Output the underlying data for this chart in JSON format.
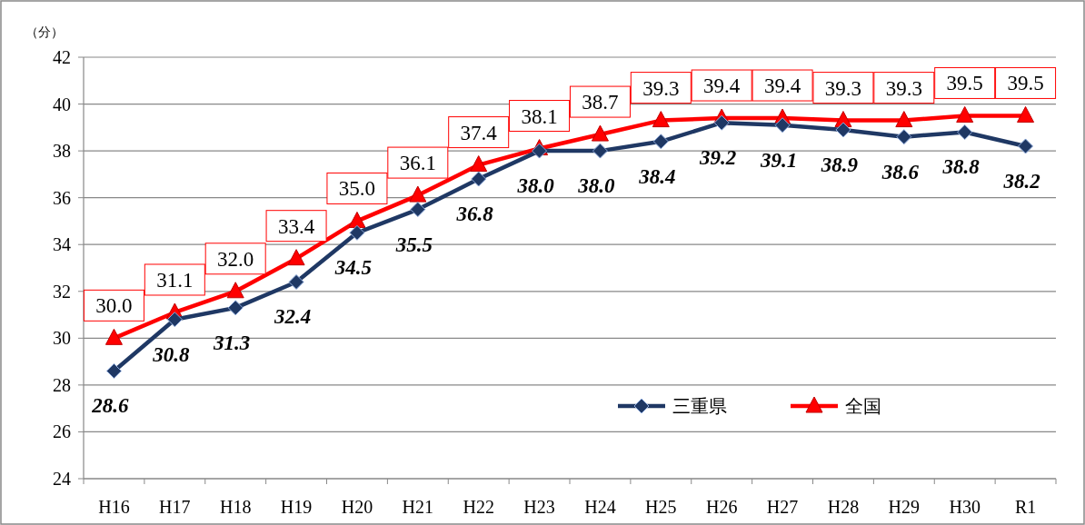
{
  "chart_data": {
    "type": "line",
    "ylabel": "（分）",
    "categories": [
      "H16",
      "H17",
      "H18",
      "H19",
      "H20",
      "H21",
      "H22",
      "H23",
      "H24",
      "H25",
      "H26",
      "H27",
      "H28",
      "H29",
      "H30",
      "R1"
    ],
    "series": [
      {
        "name": "三重県",
        "color": "#1f3864",
        "marker": "diamond",
        "values": [
          28.6,
          30.8,
          31.3,
          32.4,
          34.5,
          35.5,
          36.8,
          38.0,
          38.0,
          38.4,
          39.2,
          39.1,
          38.9,
          38.6,
          38.8,
          38.2
        ],
        "value_labels": [
          "28.6",
          "30.8",
          "31.3",
          "32.4",
          "34.5",
          "35.5",
          "36.8",
          "38.0",
          "38.0",
          "38.4",
          "39.2",
          "39.1",
          "38.9",
          "38.6",
          "38.8",
          "38.2"
        ]
      },
      {
        "name": "全国",
        "color": "#ff0000",
        "marker": "triangle",
        "values": [
          30.0,
          31.1,
          32.0,
          33.4,
          35.0,
          36.1,
          37.4,
          38.1,
          38.7,
          39.3,
          39.4,
          39.4,
          39.3,
          39.3,
          39.5,
          39.5
        ],
        "value_labels": [
          "30.0",
          "31.1",
          "32.0",
          "33.4",
          "35.0",
          "36.1",
          "37.4",
          "38.1",
          "38.7",
          "39.3",
          "39.4",
          "39.4",
          "39.3",
          "39.3",
          "39.5",
          "39.5"
        ]
      }
    ],
    "ylim": [
      24,
      42
    ],
    "yticks": [
      24,
      26,
      28,
      30,
      32,
      34,
      36,
      38,
      40,
      42
    ],
    "grid": "y",
    "legend": "bottom right"
  }
}
